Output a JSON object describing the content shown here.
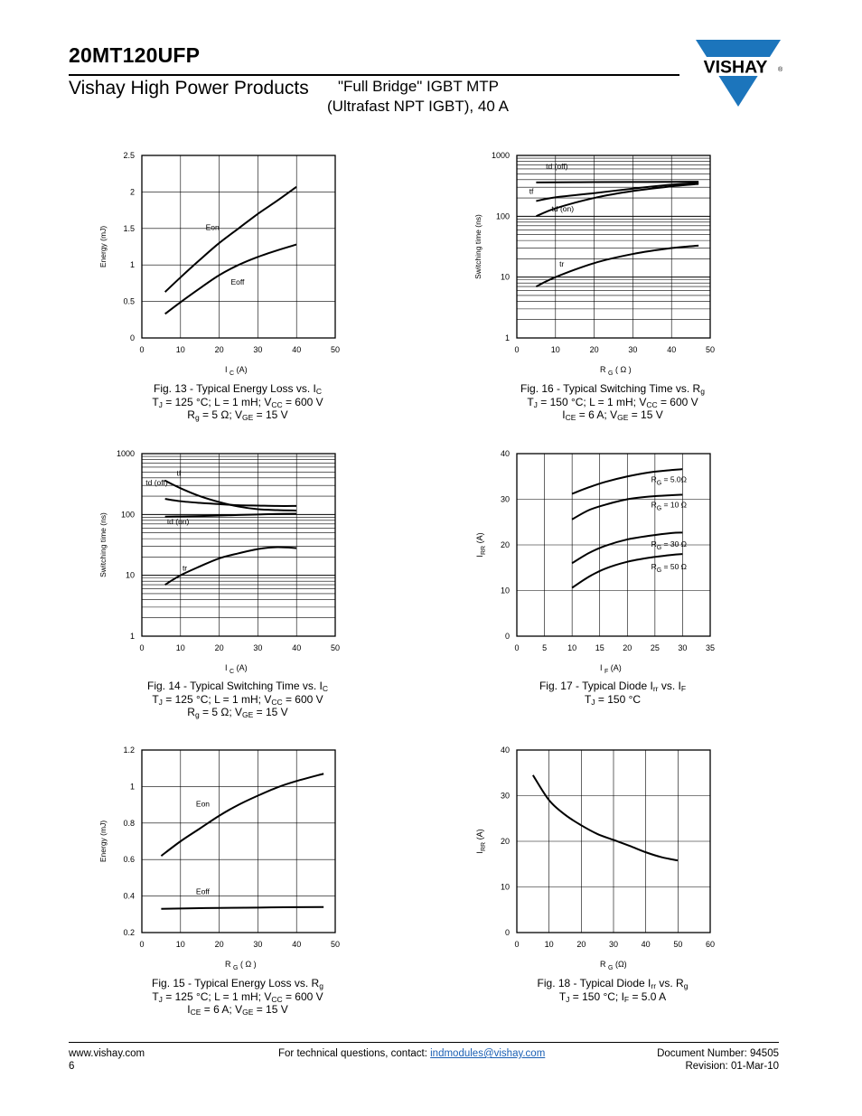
{
  "header": {
    "part_number": "20MT120UFP",
    "division": "Vishay High Power Products",
    "title_line1": "\"Full Bridge\" IGBT MTP",
    "title_line2": "(Ultrafast NPT IGBT), 40 A",
    "logo_text": "VISHAY",
    "logo_mark": "®"
  },
  "colors": {
    "text": "#000000",
    "logo_blue": "#1c75bc",
    "link": "#1a5fb4"
  },
  "figures": [
    {
      "id": "fig13",
      "chart_data": {
        "type": "line",
        "ylabel": "Energy (mJ)",
        "xlabel_main": "I",
        "xlabel_sub": "C",
        "xlabel_unit": "(A)",
        "xlim": [
          0,
          50
        ],
        "ylim": [
          0,
          2.5
        ],
        "log_y": false,
        "x_ticks": [
          "0",
          "10",
          "20",
          "30",
          "40",
          "50"
        ],
        "y_ticks": [
          "0",
          "0.5",
          "1",
          "1.5",
          "2",
          "2.5"
        ],
        "x_tick_values": [
          0,
          10,
          20,
          30,
          40,
          50
        ],
        "y_tick_values": [
          0,
          0.5,
          1,
          1.5,
          2,
          2.5
        ],
        "series": [
          {
            "name": "Eon",
            "x": [
              6,
              10,
              15,
              20,
              25,
              30,
              35,
              40
            ],
            "y": [
              0.63,
              0.83,
              1.07,
              1.3,
              1.5,
              1.7,
              1.88,
              2.07
            ],
            "label_at": [
              16.5,
              1.48
            ]
          },
          {
            "name": "Eoff",
            "x": [
              6,
              10,
              15,
              20,
              25,
              30,
              35,
              40
            ],
            "y": [
              0.33,
              0.49,
              0.68,
              0.86,
              1.0,
              1.11,
              1.2,
              1.28
            ],
            "label_at": [
              23,
              0.73
            ]
          }
        ]
      },
      "caption": [
        [
          [
            "Fig. 13 - Typical Energy Loss vs. I",
            ""
          ],
          [
            "C",
            "sub"
          ]
        ],
        [
          [
            "T",
            ""
          ],
          [
            "J",
            "sub"
          ],
          [
            " = 125 °C; L = 1 mH; V",
            ""
          ],
          [
            "CC",
            "sub"
          ],
          [
            " = 600 V",
            ""
          ]
        ],
        [
          [
            "R",
            ""
          ],
          [
            "g",
            "sub"
          ],
          [
            " = 5 Ω; V",
            ""
          ],
          [
            "GE",
            "sub"
          ],
          [
            " = 15 V",
            ""
          ]
        ]
      ]
    },
    {
      "id": "fig16",
      "chart_data": {
        "type": "line",
        "ylabel": "Switching time (ns)",
        "xlabel_main": "R",
        "xlabel_sub": "G",
        "xlabel_unit": "( Ω )",
        "xlim": [
          0,
          50
        ],
        "ylim": [
          1,
          1000
        ],
        "log_y": true,
        "x_ticks": [
          "0",
          "10",
          "20",
          "30",
          "40",
          "50"
        ],
        "y_ticks": [
          "1",
          "10",
          "100",
          "1000"
        ],
        "x_tick_values": [
          0,
          10,
          20,
          30,
          40,
          50
        ],
        "y_tick_values": [
          1,
          10,
          100,
          1000
        ],
        "series": [
          {
            "name": "td (off)",
            "x": [
              5,
              10,
              20,
              30,
              40,
              47
            ],
            "y": [
              360,
              362,
              364,
              366,
              368,
              370
            ],
            "label_at": [
              7.5,
              600
            ]
          },
          {
            "name": "tf",
            "x": [
              5,
              10,
              20,
              30,
              40,
              47
            ],
            "y": [
              178,
              205,
              240,
              285,
              330,
              355
            ],
            "label_at": [
              3.2,
              235
            ]
          },
          {
            "name": "td (on)",
            "x": [
              5,
              10,
              20,
              30,
              40,
              47
            ],
            "y": [
              100,
              135,
              200,
              260,
              310,
              340
            ],
            "label_at": [
              9,
              120
            ]
          },
          {
            "name": "tr",
            "x": [
              5,
              10,
              20,
              30,
              40,
              47
            ],
            "y": [
              7,
              10,
              17,
              24,
              30,
              33
            ],
            "label_at": [
              11,
              15
            ]
          }
        ]
      },
      "caption": [
        [
          [
            "Fig. 16 - Typical Switching Time vs. R",
            ""
          ],
          [
            "g",
            "sub"
          ]
        ],
        [
          [
            "T",
            ""
          ],
          [
            "J",
            "sub"
          ],
          [
            " = 150 °C; L = 1 mH; V",
            ""
          ],
          [
            "CC",
            "sub"
          ],
          [
            " = 600 V",
            ""
          ]
        ],
        [
          [
            "I",
            ""
          ],
          [
            "CE",
            "sub"
          ],
          [
            " = 6 A; V",
            ""
          ],
          [
            "GE",
            "sub"
          ],
          [
            " = 15 V",
            ""
          ]
        ]
      ]
    },
    {
      "id": "fig14",
      "chart_data": {
        "type": "line",
        "ylabel": "Switching time (ns)",
        "xlabel_main": "I",
        "xlabel_sub": "C",
        "xlabel_unit": "(A)",
        "xlim": [
          0,
          50
        ],
        "ylim": [
          1,
          1000
        ],
        "log_y": true,
        "x_ticks": [
          "0",
          "10",
          "20",
          "30",
          "40",
          "50"
        ],
        "y_ticks": [
          "1",
          "10",
          "100",
          "1000"
        ],
        "x_tick_values": [
          0,
          10,
          20,
          30,
          40,
          50
        ],
        "y_tick_values": [
          1,
          10,
          100,
          1000
        ],
        "series": [
          {
            "name": "tf",
            "x": [
              6,
              10,
              15,
              20,
              25,
              30,
              35,
              40
            ],
            "y": [
              360,
              270,
              200,
              160,
              135,
              122,
              118,
              116
            ],
            "label_at": [
              9,
              430
            ]
          },
          {
            "name": "td (off)",
            "x": [
              6,
              10,
              15,
              20,
              25,
              30,
              35,
              40
            ],
            "y": [
              180,
              165,
              155,
              148,
              142,
              140,
              138,
              138
            ],
            "label_at": [
              1,
              300
            ]
          },
          {
            "name": "td (on)",
            "x": [
              6,
              10,
              15,
              20,
              25,
              30,
              35,
              40
            ],
            "y": [
              92,
              93,
              94,
              96,
              98,
              100,
              102,
              103
            ],
            "label_at": [
              6.5,
              70
            ]
          },
          {
            "name": "tr",
            "x": [
              6,
              10,
              15,
              20,
              25,
              30,
              35,
              40
            ],
            "y": [
              7,
              10,
              14,
              19,
              23,
              27,
              29,
              28
            ],
            "label_at": [
              10.5,
              12
            ]
          }
        ]
      },
      "caption": [
        [
          [
            "Fig. 14 - Typical Switching Time vs. I",
            ""
          ],
          [
            "C",
            "sub"
          ]
        ],
        [
          [
            "T",
            ""
          ],
          [
            "J",
            "sub"
          ],
          [
            " = 125 °C; L = 1 mH; V",
            ""
          ],
          [
            "CC",
            "sub"
          ],
          [
            " = 600 V",
            ""
          ]
        ],
        [
          [
            "R",
            ""
          ],
          [
            "g",
            "sub"
          ],
          [
            " = 5 Ω; V",
            ""
          ],
          [
            "GE",
            "sub"
          ],
          [
            " = 15 V",
            ""
          ]
        ]
      ]
    },
    {
      "id": "fig17",
      "chart_data": {
        "type": "line",
        "ylabel_main": "I",
        "ylabel_sub": "RR",
        "ylabel_unit": "(A)",
        "xlabel_main": "I",
        "xlabel_sub": "F",
        "xlabel_unit": "(A)",
        "xlim": [
          0,
          35
        ],
        "ylim": [
          0,
          40
        ],
        "log_y": false,
        "x_ticks": [
          "0",
          "5",
          "10",
          "15",
          "20",
          "25",
          "30",
          "35"
        ],
        "y_ticks": [
          "0",
          "10",
          "20",
          "30",
          "40"
        ],
        "x_tick_values": [
          0,
          5,
          10,
          15,
          20,
          25,
          30,
          35
        ],
        "y_tick_values": [
          0,
          10,
          20,
          30,
          40
        ],
        "series": [
          {
            "name": "RG = 5.0Ω",
            "label_main": "R",
            "label_sub": "G",
            "label_rest": " = 5.0Ω",
            "x": [
              10,
              13,
              16,
              20,
              24,
              28,
              30
            ],
            "y": [
              31.2,
              32.6,
              33.8,
              35,
              35.9,
              36.4,
              36.6
            ],
            "label_at": [
              24.3,
              33.8
            ]
          },
          {
            "name": "RG = 10 Ω",
            "label_main": "R",
            "label_sub": "G",
            "label_rest": " = 10 Ω",
            "x": [
              10,
              13,
              16,
              20,
              24,
              28,
              30
            ],
            "y": [
              25.6,
              27.6,
              28.8,
              30,
              30.6,
              30.9,
              31
            ],
            "label_at": [
              24.3,
              28.2
            ]
          },
          {
            "name": "RG = 30 Ω",
            "label_main": "R",
            "label_sub": "G",
            "label_rest": " = 30 Ω",
            "x": [
              10,
              13,
              16,
              20,
              24,
              28,
              30
            ],
            "y": [
              16,
              18.2,
              19.8,
              21.2,
              22,
              22.6,
              22.7
            ],
            "label_at": [
              24.3,
              19.6
            ]
          },
          {
            "name": "RG = 50 Ω",
            "label_main": "R",
            "label_sub": "G",
            "label_rest": " = 50 Ω",
            "x": [
              10,
              13,
              16,
              20,
              24,
              28,
              30
            ],
            "y": [
              10.6,
              13,
              14.8,
              16.3,
              17.2,
              17.8,
              18
            ],
            "label_at": [
              24.3,
              14.7
            ]
          }
        ]
      },
      "caption": [
        [
          [
            "Fig. 17 - Typical Diode I",
            ""
          ],
          [
            "rr",
            "sub"
          ],
          [
            " vs. I",
            ""
          ],
          [
            "F",
            "sub"
          ]
        ],
        [
          [
            "T",
            ""
          ],
          [
            "J",
            "sub"
          ],
          [
            " = 150 °C",
            ""
          ]
        ]
      ]
    },
    {
      "id": "fig15",
      "chart_data": {
        "type": "line",
        "ylabel": "Energy (mJ)",
        "xlabel_main": "R",
        "xlabel_sub": "G",
        "xlabel_unit": "( Ω )",
        "xlim": [
          0,
          50
        ],
        "ylim": [
          0.2,
          1.2
        ],
        "log_y": false,
        "x_ticks": [
          "0",
          "10",
          "20",
          "30",
          "40",
          "50"
        ],
        "y_ticks": [
          "0.2",
          "0.4",
          "0.6",
          "0.8",
          "1",
          "1.2"
        ],
        "x_tick_values": [
          0,
          10,
          20,
          30,
          40,
          50
        ],
        "y_tick_values": [
          0.2,
          0.4,
          0.6,
          0.8,
          1.0,
          1.2
        ],
        "series": [
          {
            "name": "Eon",
            "x": [
              5,
              10,
              15,
              20,
              25,
              30,
              35,
              40,
              47
            ],
            "y": [
              0.62,
              0.7,
              0.77,
              0.84,
              0.9,
              0.95,
              0.995,
              1.03,
              1.07
            ],
            "label_at": [
              14000,
              0
            ],
            "label_xy": [
              14,
              0.89
            ]
          },
          {
            "name": "Eoff",
            "x": [
              5,
              10,
              20,
              30,
              40,
              47
            ],
            "y": [
              0.33,
              0.332,
              0.335,
              0.337,
              0.339,
              0.34
            ],
            "label_at": [
              14000,
              0
            ],
            "label_xy": [
              14,
              0.41
            ]
          }
        ]
      },
      "caption": [
        [
          [
            "Fig. 15 - Typical Energy Loss vs. R",
            ""
          ],
          [
            "g",
            "sub"
          ]
        ],
        [
          [
            "T",
            ""
          ],
          [
            "J",
            "sub"
          ],
          [
            " = 125 °C; L = 1 mH; V",
            ""
          ],
          [
            "CC",
            "sub"
          ],
          [
            " = 600 V",
            ""
          ]
        ],
        [
          [
            "I",
            ""
          ],
          [
            "CE",
            "sub"
          ],
          [
            " = 6 A; V",
            ""
          ],
          [
            "GE",
            "sub"
          ],
          [
            " = 15 V",
            ""
          ]
        ]
      ]
    },
    {
      "id": "fig18",
      "chart_data": {
        "type": "line",
        "ylabel_main": "I",
        "ylabel_sub": "RR",
        "ylabel_unit": "(A)",
        "xlabel_main": "R",
        "xlabel_sub": "G",
        "xlabel_unit": "(Ω)",
        "xlim": [
          0,
          60
        ],
        "ylim": [
          0,
          40
        ],
        "log_y": false,
        "x_ticks": [
          "0",
          "10",
          "20",
          "30",
          "40",
          "50",
          "60"
        ],
        "y_ticks": [
          "0",
          "10",
          "20",
          "30",
          "40"
        ],
        "x_tick_values": [
          0,
          10,
          20,
          30,
          40,
          50,
          60
        ],
        "y_tick_values": [
          0,
          10,
          20,
          30,
          40
        ],
        "series": [
          {
            "name": "IRR",
            "x": [
              5,
              10,
              15,
              20,
              25,
              30,
              35,
              40,
              45,
              50
            ],
            "y": [
              34.5,
              29,
              25.8,
              23.5,
              21.6,
              20.3,
              19,
              17.6,
              16.5,
              15.8
            ]
          }
        ]
      },
      "caption": [
        [
          [
            "Fig. 18 - Typical Diode I",
            ""
          ],
          [
            "rr",
            "sub"
          ],
          [
            " vs. R",
            ""
          ],
          [
            "g",
            "sub"
          ]
        ],
        [
          [
            "T",
            ""
          ],
          [
            "J",
            "sub"
          ],
          [
            " = 150 °C; I",
            ""
          ],
          [
            "F",
            "sub"
          ],
          [
            " = 5.0 A",
            ""
          ]
        ]
      ]
    }
  ],
  "footer": {
    "website": "www.vishay.com",
    "page": "6",
    "contact_prefix": "For technical questions, contact: ",
    "contact_email": "indmodules@vishay.com",
    "doc_number": "Document Number: 94505",
    "revision": "Revision: 01-Mar-10"
  }
}
